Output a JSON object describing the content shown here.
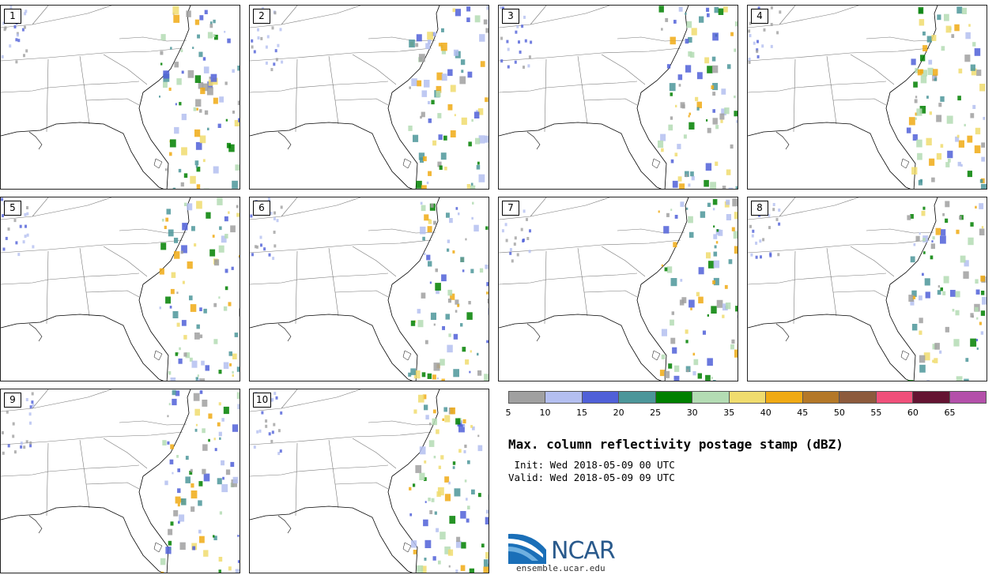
{
  "panels": [
    {
      "label": "1"
    },
    {
      "label": "2"
    },
    {
      "label": "3"
    },
    {
      "label": "4"
    },
    {
      "label": "5"
    },
    {
      "label": "6"
    },
    {
      "label": "7"
    },
    {
      "label": "8"
    },
    {
      "label": "9"
    },
    {
      "label": "10"
    }
  ],
  "colorbar": {
    "colors": [
      "#a0a0a0",
      "#b4bff0",
      "#5060d8",
      "#4c969a",
      "#008000",
      "#b4dcb4",
      "#f0dc6e",
      "#f0aa14",
      "#b47828",
      "#8c5a3c",
      "#f0507a",
      "#641432",
      "#b450aa"
    ],
    "tick_labels": [
      "5",
      "10",
      "15",
      "20",
      "25",
      "30",
      "35",
      "40",
      "45",
      "50",
      "55",
      "60",
      "65"
    ]
  },
  "title": "Max. column reflectivity postage stamp (dBZ)",
  "init": " Init: Wed 2018-05-09 00 UTC",
  "valid": "Valid: Wed 2018-05-09 09 UTC",
  "logo": {
    "text": "NCAR",
    "url": "ensemble.ucar.edu"
  }
}
